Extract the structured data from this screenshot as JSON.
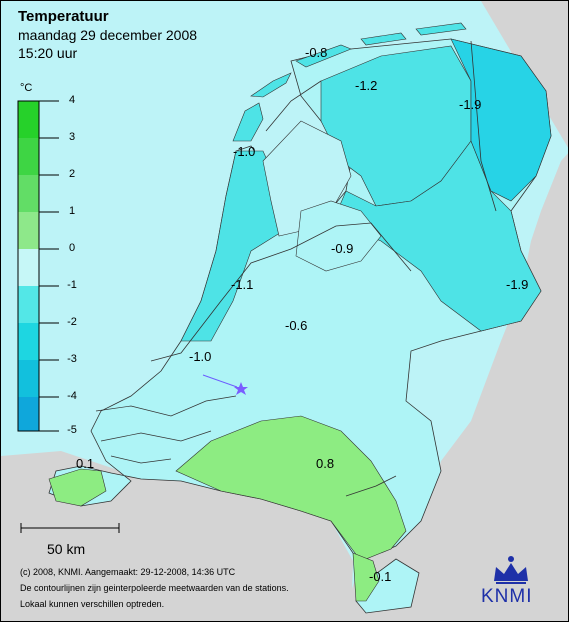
{
  "header": {
    "title": "Temperatuur",
    "date": "maandag 29 december 2008",
    "time": "15:20 uur"
  },
  "legend": {
    "unit": "°C",
    "ticks": [
      "4",
      "3",
      "2",
      "1",
      "0",
      "-1",
      "-2",
      "-3",
      "-4",
      "-5"
    ],
    "colors": [
      "#26d12a",
      "#3ed544",
      "#62dd66",
      "#8ee88a",
      "#c6f7f7",
      "#53e7e7",
      "#1ed6e1",
      "#12c0dd",
      "#0fa7db"
    ]
  },
  "map": {
    "contour_labels": [
      "-0.8",
      "-1.2",
      "-1.9",
      "-1.0",
      "-0.9",
      "-1.1",
      "-1.9",
      "-0.6",
      "-1.0",
      "0.1",
      "0.8",
      "-0.1"
    ],
    "station_marker": "station-star-icon",
    "colors": {
      "sea": "#bdf3f7",
      "land_light": "#aef4f6",
      "land_medium": "#4ee3e6",
      "land_dark": "#27d3e6",
      "land_warm": "#8dec82",
      "abroad": "#d4d4d4"
    }
  },
  "scale_bar": {
    "label": "50 km"
  },
  "footer": [
    "(c) 2008, KNMI. Aangemaakt: 29-12-2008, 14:36 UTC",
    "De contourlijnen zijn geinterpoleerde meetwaarden van de stations.",
    "Lokaal kunnen verschillen optreden."
  ],
  "logo": {
    "text": "KNMI"
  }
}
